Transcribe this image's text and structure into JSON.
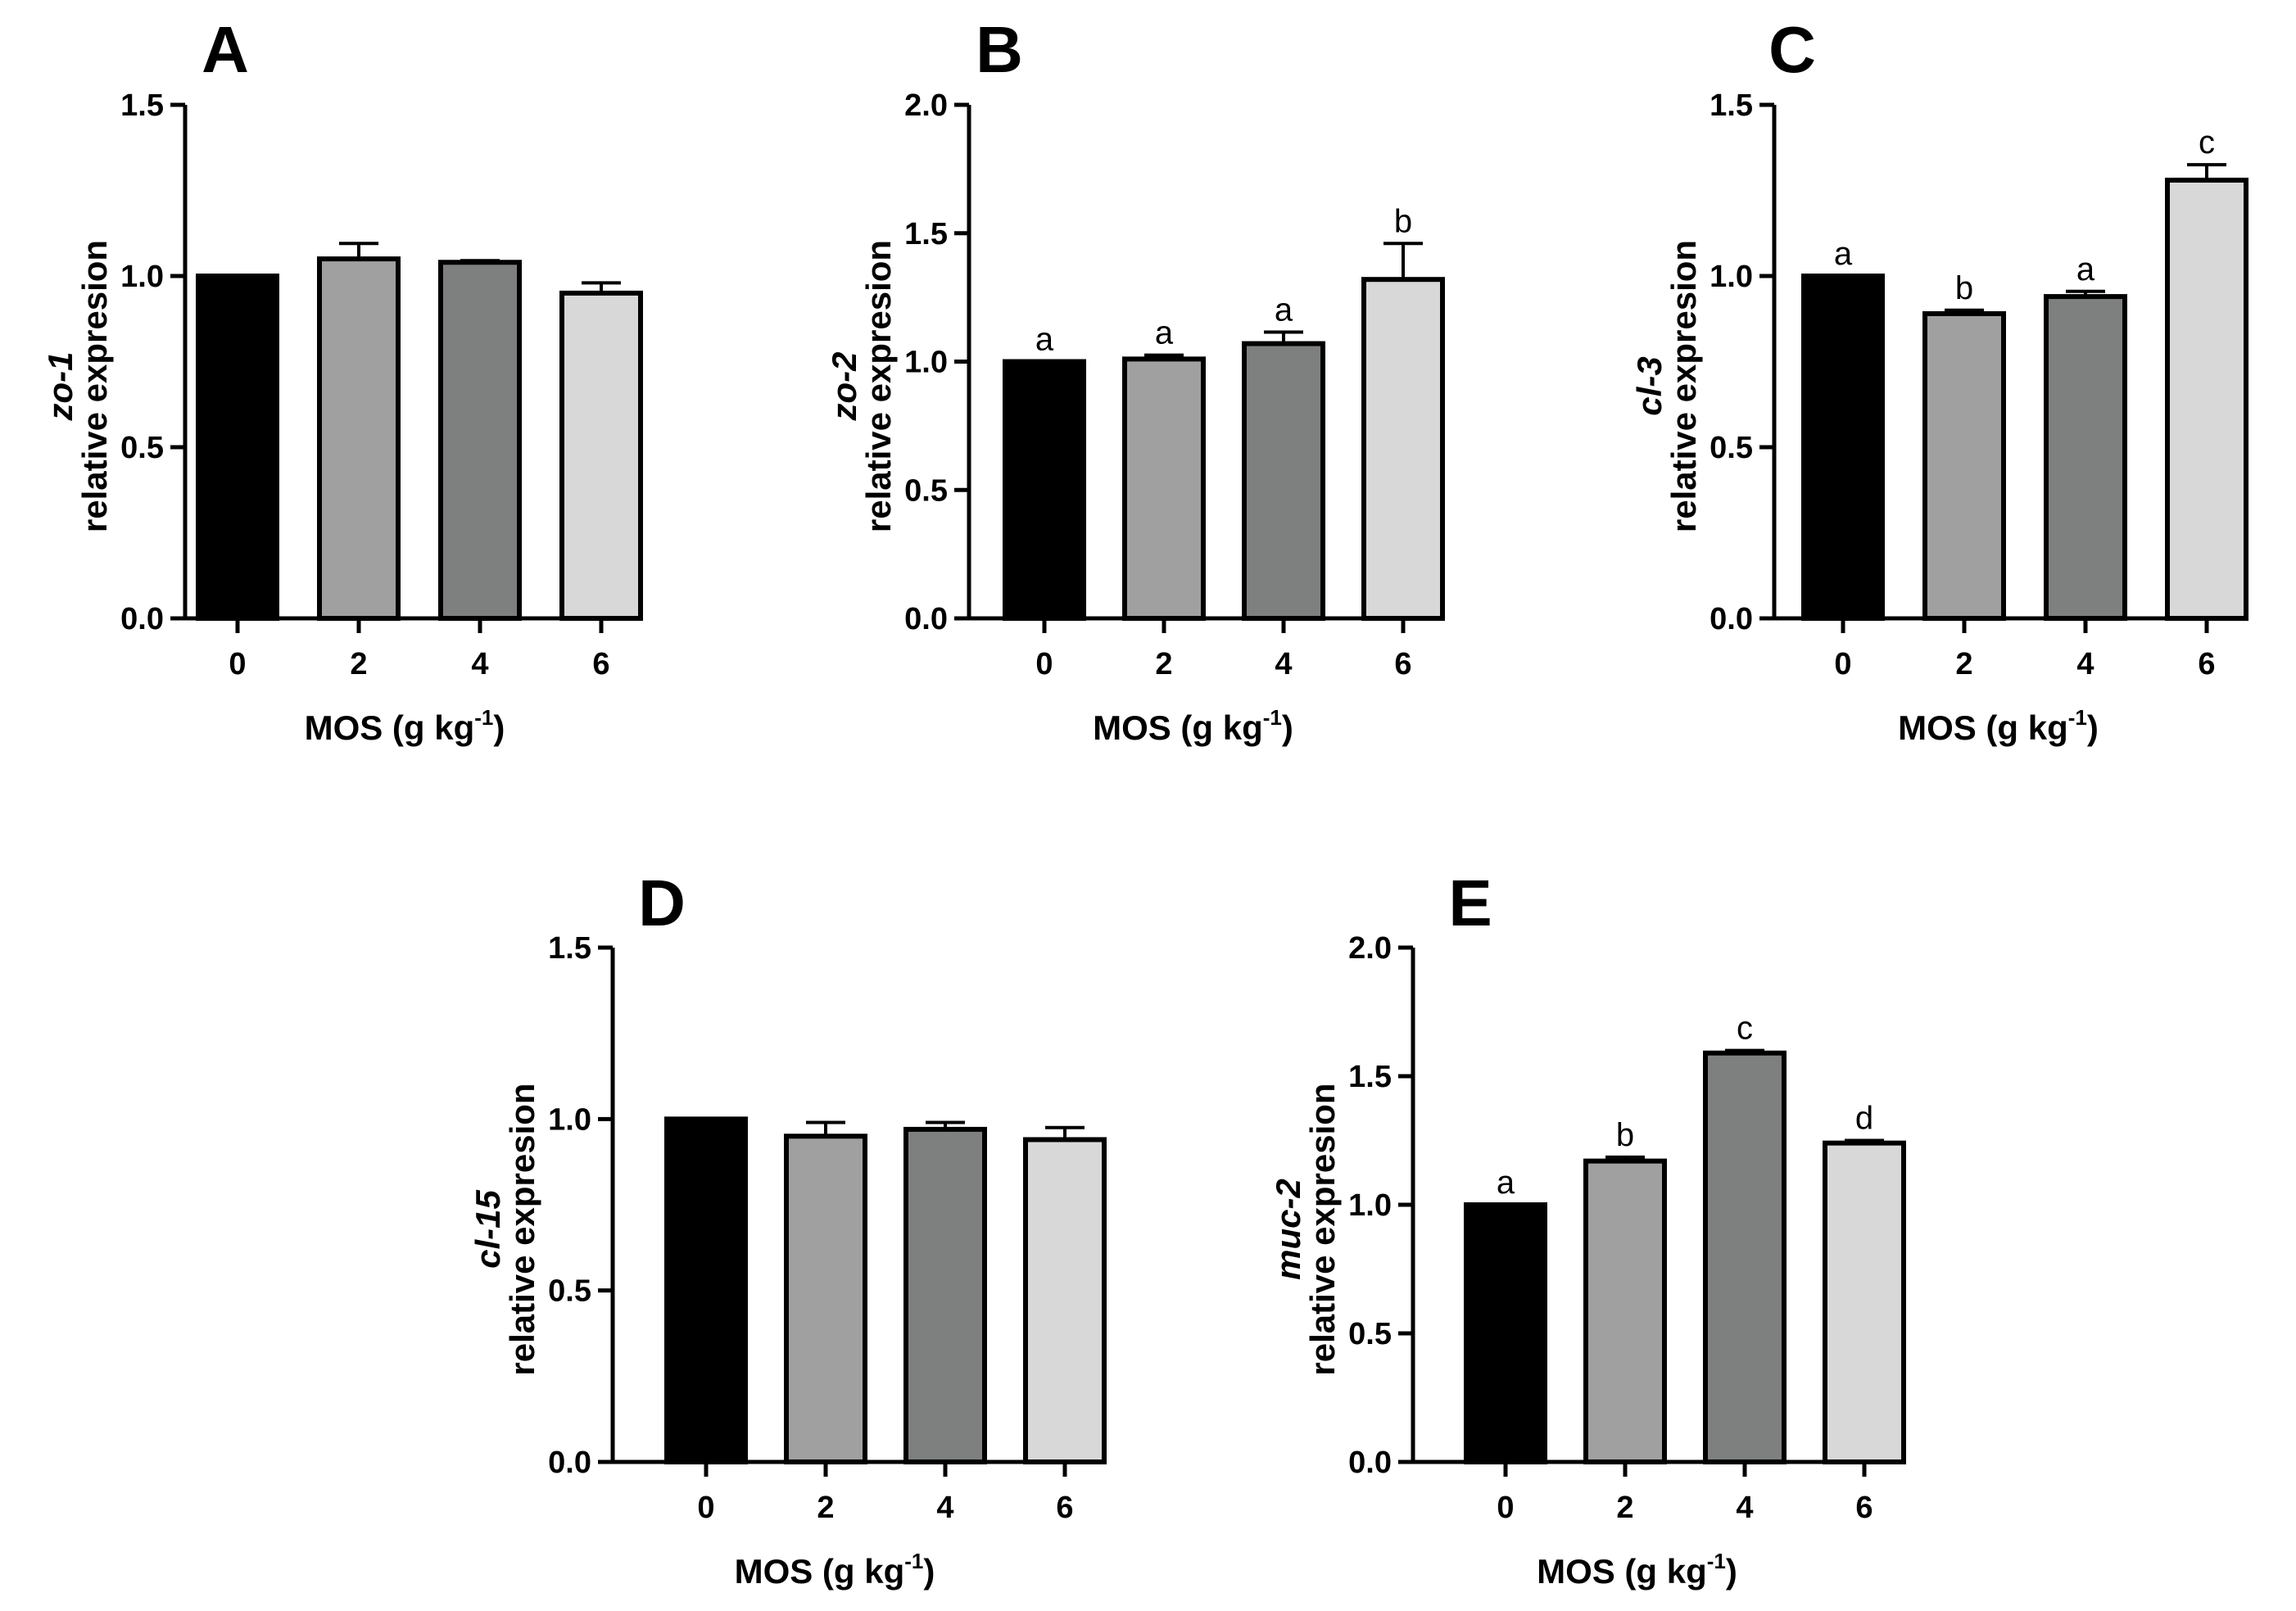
{
  "colors": {
    "axis": "#000000",
    "bar_fills": [
      "#000000",
      "#a0a0a0",
      "#7d807f",
      "#d8d8d8"
    ],
    "bar_stroke": "#000000"
  },
  "chart_data": [
    {
      "type": "bar",
      "panel": "A",
      "categories": [
        "0",
        "2",
        "4",
        "6"
      ],
      "values": [
        1.0,
        1.05,
        1.04,
        0.95
      ],
      "errors": [
        0,
        0.045,
        0.005,
        0.03
      ],
      "sig_letters": [
        "",
        "",
        "",
        ""
      ],
      "ylim": [
        0,
        1.5
      ],
      "yticks": [
        0.0,
        0.5,
        1.0,
        1.5
      ],
      "ytick_labels": [
        "0.0",
        "0.5",
        "1.0",
        "1.5"
      ],
      "ylabel_gene": "zo-1",
      "ylabel": "relative expresion",
      "xlabel": "MOS (g  kg",
      "xlabel_sup": "-1",
      "xlabel_end": ")"
    },
    {
      "type": "bar",
      "panel": "B",
      "categories": [
        "0",
        "2",
        "4",
        "6"
      ],
      "values": [
        1.0,
        1.01,
        1.07,
        1.32
      ],
      "errors": [
        0,
        0.015,
        0.045,
        0.14
      ],
      "sig_letters": [
        "a",
        "a",
        "a",
        "b"
      ],
      "ylim": [
        0,
        2.0
      ],
      "yticks": [
        0.0,
        0.5,
        1.0,
        1.5,
        2.0
      ],
      "ytick_labels": [
        "0.0",
        "0.5",
        "1.0",
        "1.5",
        "2.0"
      ],
      "ylabel_gene": "zo-2",
      "ylabel": "relative expresion",
      "xlabel": "MOS (g  kg",
      "xlabel_sup": "-1",
      "xlabel_end": ")"
    },
    {
      "type": "bar",
      "panel": "C",
      "categories": [
        "0",
        "2",
        "4",
        "6"
      ],
      "values": [
        1.0,
        0.89,
        0.94,
        1.28
      ],
      "errors": [
        0,
        0.01,
        0.015,
        0.045
      ],
      "sig_letters": [
        "a",
        "b",
        "a",
        "c"
      ],
      "ylim": [
        0,
        1.5
      ],
      "yticks": [
        0.0,
        0.5,
        1.0,
        1.5
      ],
      "ytick_labels": [
        "0.0",
        "0.5",
        "1.0",
        "1.5"
      ],
      "ylabel_gene": "cl-3",
      "ylabel": "relative expresion",
      "xlabel": "MOS (g  kg",
      "xlabel_sup": "-1",
      "xlabel_end": ")"
    },
    {
      "type": "bar",
      "panel": "D",
      "categories": [
        "0",
        "2",
        "4",
        "6"
      ],
      "values": [
        1.0,
        0.95,
        0.97,
        0.94
      ],
      "errors": [
        0,
        0.04,
        0.02,
        0.035
      ],
      "sig_letters": [
        "",
        "",
        "",
        ""
      ],
      "ylim": [
        0,
        1.5
      ],
      "yticks": [
        0.0,
        0.5,
        1.0,
        1.5
      ],
      "ytick_labels": [
        "0.0",
        "0.5",
        "1.0",
        "1.5"
      ],
      "ylabel_gene": "cl-15",
      "ylabel": "relative expresion",
      "xlabel": "MOS (g  kg",
      "xlabel_sup": "-1",
      "xlabel_end": ")"
    },
    {
      "type": "bar",
      "panel": "E",
      "categories": [
        "0",
        "2",
        "4",
        "6"
      ],
      "values": [
        1.0,
        1.17,
        1.59,
        1.24
      ],
      "errors": [
        0,
        0.015,
        0.01,
        0.01
      ],
      "sig_letters": [
        "a",
        "b",
        "c",
        "d"
      ],
      "ylim": [
        0,
        2.0
      ],
      "yticks": [
        0.0,
        0.5,
        1.0,
        1.5,
        2.0
      ],
      "ytick_labels": [
        "0.0",
        "0.5",
        "1.0",
        "1.5",
        "2.0"
      ],
      "ylabel_gene": "muc-2",
      "ylabel": "relative expresion",
      "xlabel": "MOS (g  kg",
      "xlabel_sup": "-1",
      "xlabel_end": ")"
    }
  ]
}
